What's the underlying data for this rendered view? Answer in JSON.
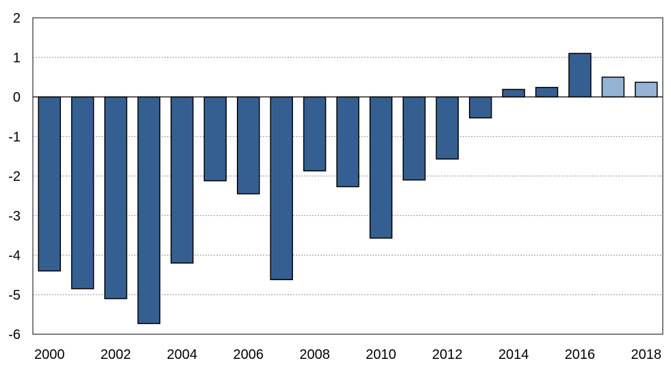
{
  "chart_data": {
    "type": "bar",
    "title": "",
    "xlabel": "",
    "ylabel": "",
    "ylim": [
      -6,
      2
    ],
    "yticks": [
      2,
      1,
      0,
      -1,
      -2,
      -3,
      -4,
      -5,
      -6
    ],
    "categories": [
      "2000",
      "2001",
      "2002",
      "2003",
      "2004",
      "2005",
      "2006",
      "2007",
      "2008",
      "2009",
      "2010",
      "2011",
      "2012",
      "2013",
      "2014",
      "2015",
      "2016",
      "2017",
      "2018"
    ],
    "xtick_labels": [
      "2000",
      "2002",
      "2004",
      "2006",
      "2008",
      "2010",
      "2012",
      "2014",
      "2016",
      "2018"
    ],
    "values": [
      -4.4,
      -4.85,
      -5.1,
      -5.73,
      -4.2,
      -2.12,
      -2.45,
      -4.62,
      -1.87,
      -2.27,
      -3.57,
      -2.1,
      -1.57,
      -0.53,
      0.19,
      0.24,
      1.1,
      0.5,
      0.37
    ],
    "bar_styles": [
      "actual",
      "actual",
      "actual",
      "actual",
      "actual",
      "actual",
      "actual",
      "actual",
      "actual",
      "actual",
      "actual",
      "actual",
      "actual",
      "actual",
      "actual",
      "actual",
      "actual",
      "forecast",
      "forecast"
    ],
    "grid": true,
    "legend": "none"
  },
  "colors": {
    "actual": "#365F91",
    "forecast": "#95B3D7",
    "outline": "#000000",
    "grid": "#666666"
  }
}
